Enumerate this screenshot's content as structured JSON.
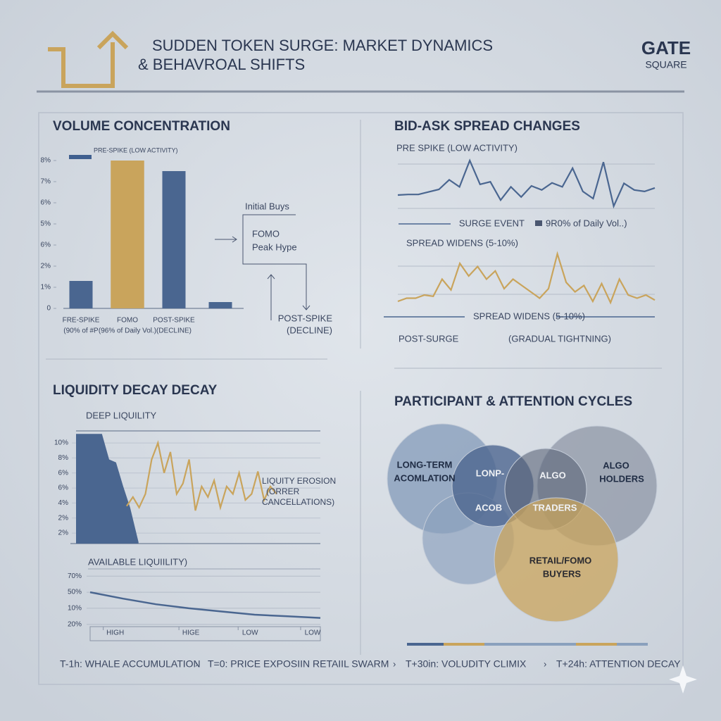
{
  "header": {
    "title_lines": [
      "SUDDEN TOKEN SURGE: MARKET DYNAMICS",
      "& BEHAVROAL SHIFTS"
    ],
    "logo": [
      "GATE",
      "SQUARE"
    ]
  },
  "chart_data": [
    {
      "type": "bar",
      "title": "VOLUME CONCENTRATION",
      "legend": "PRE-SPIKE (LOW ACTIVITY)",
      "legend_color": "#3f5f8f",
      "categories": [
        "FRE-SPIKE",
        "FOMO",
        "POST-SPIKE",
        null
      ],
      "category_notes": [
        "(90% of #P",
        "(96% of Daily Vol.)",
        "(DECLINE)",
        null
      ],
      "values": [
        1.3,
        7,
        6.5,
        0.3
      ],
      "colors": [
        "#4a6690",
        "#c9a45c",
        "#4a6690",
        "#4a6690"
      ],
      "ylim": [
        0,
        7
      ],
      "yticks": [
        0,
        {
          "value": 1,
          "label": "1%"
        },
        {
          "value": 2,
          "label": "2%"
        },
        {
          "value": 3,
          "label": "6%"
        },
        {
          "value": 4,
          "label": "5%"
        },
        {
          "value": 5,
          "label": "6%"
        },
        {
          "value": 6,
          "label": "7%"
        },
        {
          "value": 7,
          "label": "8%"
        }
      ],
      "annotations": [
        "Initial Buys",
        "FOMO",
        "Peak Hype",
        "POST-SPIKE",
        "(DECLINE)"
      ]
    },
    {
      "type": "line",
      "title": "BID-ASK SPREAD CHANGES",
      "ylim": [
        0,
        10
      ],
      "annotations": [
        "PRE SPIKE (LOW ACTIVITY)",
        "SURGE EVENT",
        "9R0% of Daily Vol..)",
        "SPREAD WIDENS (5-10%)",
        "SPREAD WIDENS (5-10%)",
        "POST-SURGE",
        "(GRADUAL TIGHTNING)"
      ],
      "series": [
        {
          "color": "#4a6690",
          "values": [
            3.2,
            3.3,
            3.3,
            3.8,
            4.3,
            6.2,
            4.8,
            10,
            5.3,
            5.8,
            2.2,
            4.8,
            2.8,
            5,
            4.2,
            5.6,
            4.8,
            8.5,
            3.9,
            2.5,
            9.7,
            1,
            5.5,
            4.2,
            3.9,
            4.6
          ]
        },
        {
          "color": "#c9a45c",
          "values": [
            1,
            1.5,
            1.5,
            2,
            1.8,
            4.5,
            2.8,
            7,
            5,
            6.5,
            4.5,
            5.8,
            3,
            4.5,
            3.5,
            2.5,
            1.5,
            3,
            8.5,
            4,
            2.5,
            3.5,
            1,
            3.8,
            0.8,
            4.5,
            2,
            1.5,
            2,
            1.2
          ]
        }
      ]
    },
    {
      "type": "area",
      "title": "LIQUIDITY DECAY DECAY",
      "annotations": [
        "DEEP LIQUILITY",
        "LIQUITY EROSION",
        "(ORRER",
        "CANCELLATIONS)"
      ],
      "xlim": [
        0,
        80
      ],
      "ylim": [
        -0.7,
        6.8
      ],
      "yticks": [
        {
          "value": 6,
          "label": "10%"
        },
        {
          "value": 5,
          "label": "8%"
        },
        {
          "value": 4,
          "label": "6%"
        },
        {
          "value": 3,
          "label": "6%"
        },
        {
          "value": 2,
          "label": "4%"
        },
        {
          "value": 1,
          "label": "2%"
        },
        {
          "value": 0,
          "label": "2%"
        }
      ],
      "series": [
        {
          "type": "area",
          "color": "#4a6690",
          "x": [
            1.8,
            10.1,
            12.4,
            14.6,
            16.9,
            19.1,
            21.8
          ],
          "values": [
            6.6,
            6.6,
            4.9,
            4.7,
            3.1,
            1.7,
            -0.6
          ]
        },
        {
          "type": "line",
          "color": "#c9a45c",
          "x": [
            18,
            20,
            22,
            24,
            26,
            28,
            30,
            32,
            34,
            36,
            38,
            40,
            42,
            44,
            46,
            48,
            50,
            52,
            54,
            56,
            58,
            60,
            62,
            64,
            66
          ],
          "values": [
            1.8,
            2.4,
            1.7,
            2.6,
            4.9,
            6,
            4,
            5.4,
            2.6,
            3.3,
            4.9,
            1.5,
            3.1,
            2.4,
            3.5,
            1.7,
            3.1,
            2.6,
            4,
            2.2,
            2.6,
            4.1,
            2.2,
            3.1,
            2.6
          ]
        }
      ]
    },
    {
      "type": "line",
      "title": "AVAILABLE LIQUIILITY)",
      "xlim": [
        0,
        7
      ],
      "ylim": [
        -0.8,
        3.8
      ],
      "xticks": [
        {
          "value": 0.4,
          "label": "HIGH"
        },
        {
          "value": 2.7,
          "label": "HIGE"
        },
        {
          "value": 4.5,
          "label": "LOW"
        },
        {
          "value": 6.4,
          "label": "LOW"
        }
      ],
      "yticks": [
        {
          "value": 0,
          "label": "20%"
        },
        {
          "value": 1,
          "label": "10%"
        },
        {
          "value": 2,
          "label": "50%"
        },
        {
          "value": 3,
          "label": "70%"
        }
      ],
      "series": [
        {
          "color": "#4a6690",
          "x": [
            0,
            1,
            2,
            3,
            4,
            5,
            6,
            7
          ],
          "values": [
            2,
            1.6,
            1.25,
            1,
            0.8,
            0.6,
            0.5,
            0.4
          ]
        }
      ]
    },
    {
      "type": "venn",
      "title": "PARTICIPANT & ATTENTION CYCLES",
      "labels": [
        "LONG-TERM",
        "ACOMLATION",
        "LONP-",
        "ACOB",
        "ALGO",
        "TRADERS",
        "ALGO",
        "HOLDERS",
        "RETAIL/FOMO",
        "BUYERS"
      ]
    }
  ],
  "timeline": [
    "T-1h: WHALE ACCUMULATION",
    "T=0: PRICE EXPOSIIN RETAIIL SWARM",
    "T+30in: VOLUDITY CLIMIX",
    "T+24h: ATTENTION DECAY"
  ]
}
